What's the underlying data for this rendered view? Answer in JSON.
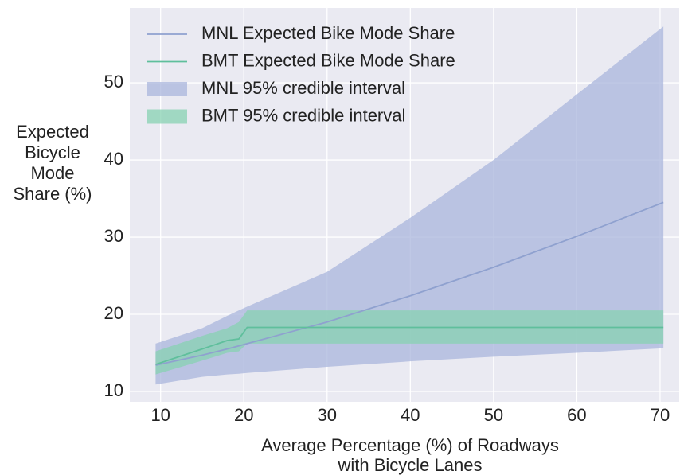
{
  "chart_data": {
    "type": "line",
    "xlabel": [
      "Average Percentage (%) of Roadways",
      "with Bicycle Lanes"
    ],
    "ylabel": [
      "Expected",
      "Bicycle",
      "Mode",
      "Share (%)"
    ],
    "x": [
      9.4,
      15,
      18,
      19.4,
      20.4,
      30,
      40,
      50,
      60,
      70.4
    ],
    "series": [
      {
        "name": "MNL Expected Bike Mode Share",
        "color": "#8fa1cf",
        "kind": "line",
        "values": [
          13.4,
          14.7,
          15.5,
          15.9,
          16.2,
          19.0,
          22.4,
          26.1,
          30.1,
          34.5
        ]
      },
      {
        "name": "BMT Expected Bike Mode Share",
        "color": "#5fbf9c",
        "kind": "line",
        "values": [
          13.5,
          15.5,
          16.6,
          16.8,
          18.3,
          18.3,
          18.3,
          18.3,
          18.3,
          18.3
        ]
      },
      {
        "name": "MNL 95% credible interval",
        "color": "#a9b6dc",
        "kind": "band",
        "lower": [
          10.9,
          11.9,
          12.2,
          12.3,
          12.4,
          13.2,
          13.9,
          14.5,
          15.0,
          15.6
        ],
        "upper": [
          16.2,
          18.2,
          19.8,
          20.5,
          21.0,
          25.5,
          32.5,
          40.0,
          48.5,
          57.3
        ]
      },
      {
        "name": "BMT 95% credible interval",
        "color": "#87d1b2",
        "kind": "band",
        "lower": [
          12.2,
          14.0,
          15.0,
          15.2,
          16.2,
          16.2,
          16.2,
          16.2,
          16.2,
          16.2
        ],
        "upper": [
          15.2,
          17.2,
          18.2,
          19.0,
          20.5,
          20.5,
          20.5,
          20.5,
          20.5,
          20.5
        ]
      }
    ],
    "xlim": [
      6.3,
      72.3
    ],
    "xticks": [
      10,
      20,
      30,
      40,
      50,
      60,
      70
    ],
    "ylim": [
      8.66,
      59.7
    ],
    "yticks": [
      10,
      20,
      30,
      40,
      50
    ],
    "grid": true,
    "legend": "upper left"
  }
}
